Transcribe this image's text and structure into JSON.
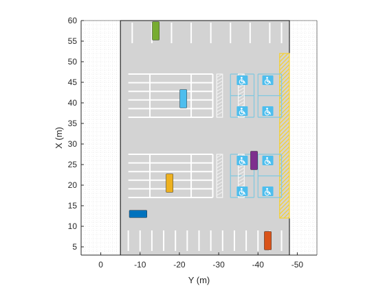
{
  "chart_data": {
    "type": "scatter",
    "title": "",
    "xlabel": "Y (m)",
    "ylabel": "X (m)",
    "xlim": [
      5,
      -55
    ],
    "ylim": [
      3,
      60
    ],
    "x_direction": "reversed",
    "xticks": [
      0,
      -10,
      -20,
      -30,
      -40,
      -50
    ],
    "xtick_labels": [
      "0",
      "-10",
      "-20",
      "-30",
      "-40",
      "-50"
    ],
    "yticks": [
      5,
      10,
      15,
      20,
      25,
      30,
      35,
      40,
      45,
      50,
      55,
      60
    ],
    "ytick_labels": [
      "5",
      "10",
      "15",
      "20",
      "25",
      "30",
      "35",
      "40",
      "45",
      "50",
      "55",
      "60"
    ],
    "grid": "minor dotted",
    "lot": {
      "y_range": [
        -5,
        -48
      ],
      "x_range": [
        3,
        60
      ],
      "color": "#d3d3d3"
    },
    "no_parking_zone": {
      "y_range": [
        -45.5,
        -48
      ],
      "x_range": [
        12,
        52
      ],
      "color": "#f5d033"
    },
    "vehicles": [
      {
        "color": "#77ac30",
        "y": -14,
        "x": 57.5,
        "width_m": 1.8,
        "length_m": 4.5,
        "orientation": "vertical"
      },
      {
        "color": "#4dbeee",
        "y": -21,
        "x": 41,
        "width_m": 1.8,
        "length_m": 4.5,
        "orientation": "vertical"
      },
      {
        "color": "#edb120",
        "y": -17.5,
        "x": 20.5,
        "width_m": 1.8,
        "length_m": 4.5,
        "orientation": "vertical"
      },
      {
        "color": "#7e2f8e",
        "y": -39,
        "x": 26,
        "width_m": 1.8,
        "length_m": 4.5,
        "orientation": "vertical"
      },
      {
        "color": "#0072bd",
        "y": -9.5,
        "x": 13,
        "width_m": 4.5,
        "length_m": 1.8,
        "orientation": "horizontal"
      },
      {
        "color": "#d95319",
        "y": -42.5,
        "x": 6.5,
        "width_m": 1.8,
        "length_m": 4.5,
        "orientation": "vertical"
      }
    ],
    "accessible_icon_color": "#4dbeee"
  }
}
